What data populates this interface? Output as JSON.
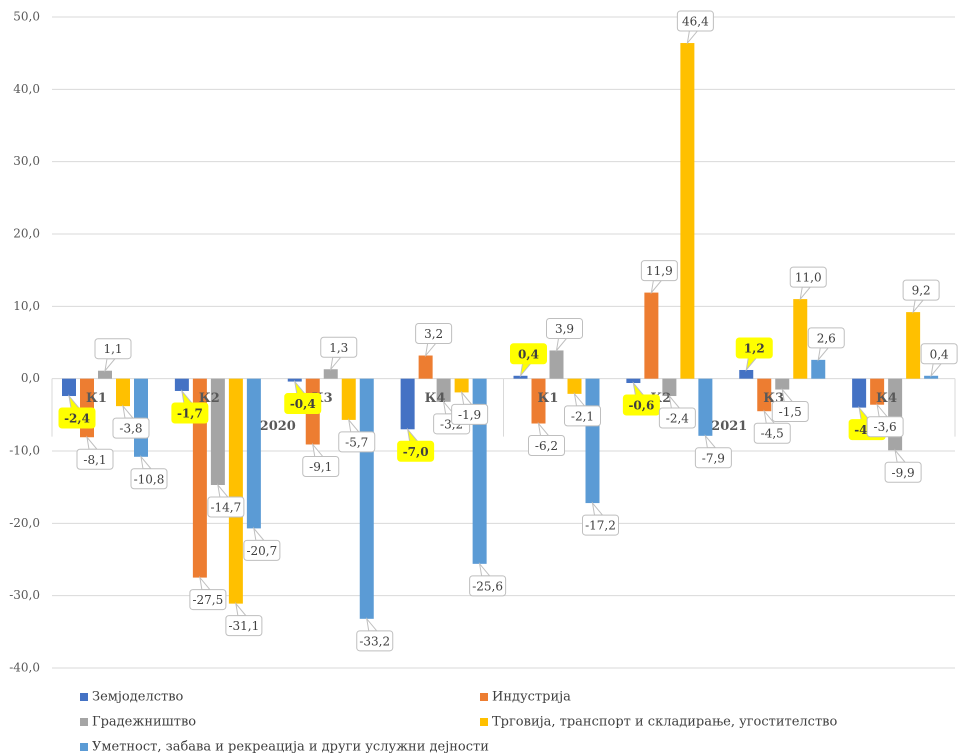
{
  "chart_data": {
    "type": "bar",
    "categories": [
      "К1",
      "К2",
      "К3",
      "К4",
      "К1",
      "К2",
      "К3",
      "К4"
    ],
    "category_groups": [
      "2020",
      "2021"
    ],
    "series": [
      {
        "name": "Земјоделство",
        "color": "#4472c4",
        "values": [
          -2.4,
          -1.7,
          -0.4,
          -7.0,
          0.4,
          -0.6,
          1.2,
          -4.0
        ],
        "value_labels": [
          "-2,4",
          "-1,7",
          "-0,4",
          "-7,0",
          "0,4",
          "-0,6",
          "1,2",
          "-4,0"
        ]
      },
      {
        "name": "Индустрија",
        "color": "#ed7d31",
        "values": [
          -8.1,
          -27.5,
          -9.1,
          3.2,
          -6.2,
          11.9,
          -4.5,
          -3.6
        ],
        "value_labels": [
          "-8,1",
          "-27,5",
          "-9,1",
          "3,2",
          "-6,2",
          "11,9",
          "-4,5",
          "-3,6"
        ]
      },
      {
        "name": "Градежништво",
        "color": "#a5a5a5",
        "values": [
          1.1,
          -14.7,
          1.3,
          -3.2,
          3.9,
          -2.4,
          -1.5,
          -9.9
        ],
        "value_labels": [
          "1,1",
          "-14,7",
          "1,3",
          "-3,2",
          "3,9",
          "-2,4",
          "-1,5",
          "-9,9"
        ]
      },
      {
        "name": "Трговија, транспорт и складирање, угостителство",
        "color": "#ffc000",
        "values": [
          -3.8,
          -31.1,
          -5.7,
          -1.9,
          -2.1,
          46.4,
          11.0,
          9.2
        ],
        "value_labels": [
          "-3,8",
          "-31,1",
          "-5,7",
          "-1,9",
          "-2,1",
          "46,4",
          "11,0",
          "9,2"
        ]
      },
      {
        "name": "Уметност, забава и рекреација и други услужни дејности",
        "color": "#5b9bd5",
        "values": [
          -10.8,
          -20.7,
          -33.2,
          -25.6,
          -17.2,
          -7.9,
          2.6,
          0.4
        ],
        "value_labels": [
          "-10,8",
          "-20,7",
          "-33,2",
          "-25,6",
          "-17,2",
          "-7,9",
          "2,6",
          "0,4"
        ]
      }
    ],
    "ylim": [
      -40,
      50
    ],
    "yticks": [
      {
        "value": -40,
        "label": "-40,0"
      },
      {
        "value": -30,
        "label": "-30,0"
      },
      {
        "value": -20,
        "label": "-20,0"
      },
      {
        "value": -10,
        "label": "-10,0"
      },
      {
        "value": 0,
        "label": "0,0"
      },
      {
        "value": 10,
        "label": "10,0"
      },
      {
        "value": 20,
        "label": "20,0"
      },
      {
        "value": 30,
        "label": "30,0"
      },
      {
        "value": 40,
        "label": "40,0"
      },
      {
        "value": 50,
        "label": "50,0"
      }
    ],
    "grid": true,
    "legend": "bottom",
    "label_highlight": "#ffff00"
  }
}
